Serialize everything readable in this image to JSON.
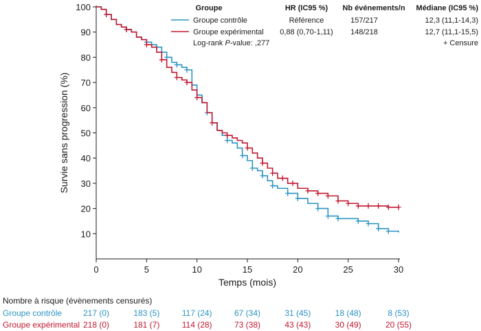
{
  "chart_data": {
    "type": "line",
    "xlabel": "Temps (mois)",
    "ylabel": "Survie sans progression (%)",
    "xlim": [
      0,
      30
    ],
    "ylim": [
      0,
      100
    ],
    "xticks": [
      "0",
      "5",
      "10",
      "15",
      "20",
      "25",
      "30"
    ],
    "yticks": [
      "10",
      "20",
      "30",
      "40",
      "50",
      "60",
      "70",
      "80",
      "90",
      "100"
    ],
    "grid": false,
    "legend": {
      "position": "top-right",
      "headers": {
        "group": "Groupe",
        "hr": "HR (IC95 %)",
        "events": "Nb événements/n",
        "median": "Médiane (IC95 %)"
      },
      "rows": [
        {
          "series": "Groupe contrôle",
          "hr": "Référence",
          "events": "157/217",
          "median": "12,3 (11,1-14,3)"
        },
        {
          "series": "Groupe expérimental",
          "hr": "0,88 (0,70-1,11)",
          "events": "148/218",
          "median": "12,7 (11,1-15,5)"
        }
      ],
      "pvalue_prefix": "Log-rank ",
      "pvalue_italic": "P",
      "pvalue_suffix": "-value: ,277",
      "censor_note": "+ Censure"
    },
    "series": [
      {
        "name": "Groupe contrôle",
        "color": "#2a93c4",
        "x": [
          0,
          0.5,
          1,
          1.5,
          2,
          2.5,
          3,
          3.5,
          4,
          4.5,
          5,
          5.5,
          6,
          6.5,
          7,
          7.5,
          8,
          8.5,
          9,
          9.5,
          10,
          10.5,
          11,
          11.5,
          12,
          12.5,
          13,
          13.5,
          14,
          14.5,
          15,
          15.5,
          16,
          16.5,
          17,
          17.5,
          18,
          19,
          20,
          21,
          22,
          23,
          24,
          25,
          26,
          27,
          28,
          29,
          30
        ],
        "y": [
          100,
          99,
          97,
          95,
          93,
          92,
          91,
          90,
          88,
          87,
          86,
          85,
          84,
          82,
          80,
          78,
          77,
          76,
          75,
          69,
          65,
          62,
          58,
          54,
          51,
          49,
          47,
          46,
          44,
          41,
          39,
          36,
          35,
          33,
          31,
          29,
          28,
          26,
          24,
          22,
          20,
          17,
          16,
          16,
          15,
          14,
          12,
          11,
          10.5
        ],
        "censor_x": [
          1,
          3,
          5,
          6,
          7,
          8,
          9,
          11,
          13,
          14.5,
          15.5,
          16.5,
          17.5,
          19,
          20,
          22,
          23,
          24,
          26,
          27,
          28,
          29
        ]
      },
      {
        "name": "Groupe expérimental",
        "color": "#c0172f",
        "x": [
          0,
          0.5,
          1,
          1.5,
          2,
          2.5,
          3,
          3.5,
          4,
          4.5,
          5,
          5.5,
          6,
          6.5,
          7,
          7.5,
          8,
          8.5,
          9,
          9.5,
          10,
          10.5,
          11,
          11.5,
          12,
          12.5,
          13,
          13.5,
          14,
          14.5,
          15,
          15.5,
          16,
          16.5,
          17,
          17.5,
          18,
          19,
          20,
          21,
          22,
          23,
          24,
          25,
          26,
          27,
          28,
          29,
          30
        ],
        "y": [
          100,
          99,
          97,
          95,
          93,
          92,
          91,
          90,
          88,
          87,
          85,
          84,
          82,
          79,
          76,
          74,
          72,
          71,
          70,
          67,
          64,
          62,
          58,
          54,
          51,
          50,
          49,
          48,
          47,
          46,
          44,
          42,
          40,
          38,
          36,
          34,
          32,
          30,
          28,
          27,
          26,
          25,
          23,
          22,
          21,
          21,
          21,
          20.5,
          20.5
        ],
        "censor_x": [
          1,
          3,
          5,
          6.5,
          8,
          9,
          10,
          11.5,
          13,
          15,
          16.5,
          17.5,
          18.5,
          19.5,
          21,
          22,
          23,
          24,
          25,
          26,
          27,
          28,
          29,
          30
        ]
      }
    ],
    "at_risk": {
      "title": "Nombre à risque (évènements censurés)",
      "times": [
        0,
        5,
        10,
        15,
        20,
        25,
        30
      ],
      "rows": [
        {
          "name": "Groupe contrôle",
          "color": "#2a93c4",
          "values": [
            "217 (0)",
            "183 (5)",
            "117 (24)",
            "67 (34)",
            "31 (45)",
            "18 (48)",
            "8 (53)"
          ]
        },
        {
          "name": "Groupe expérimental",
          "color": "#c0172f",
          "values": [
            "218 (0)",
            "181 (7)",
            "114 (28)",
            "73 (38)",
            "43 (43)",
            "30 (49)",
            "20 (55)"
          ]
        }
      ]
    }
  }
}
